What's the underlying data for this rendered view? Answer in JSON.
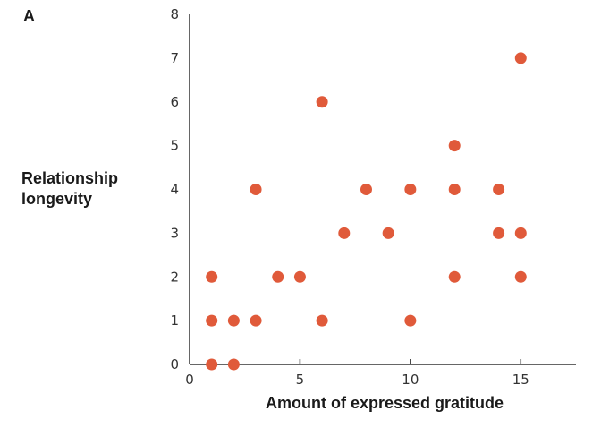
{
  "panel_label": "A",
  "chart_data": {
    "type": "scatter",
    "title": "",
    "xlabel": "Amount of expressed gratitude",
    "ylabel_lines": [
      "Relationship",
      "longevity"
    ],
    "xlim": [
      0,
      17.5
    ],
    "ylim": [
      0,
      8
    ],
    "x_ticks": [
      0,
      5,
      10,
      15
    ],
    "y_ticks": [
      0,
      1,
      2,
      3,
      4,
      5,
      6,
      7,
      8
    ],
    "grid": false,
    "marker_color": "#e05a3a",
    "points": [
      {
        "x": 1,
        "y": 0
      },
      {
        "x": 1,
        "y": 1
      },
      {
        "x": 1,
        "y": 2
      },
      {
        "x": 2,
        "y": 0
      },
      {
        "x": 2,
        "y": 1
      },
      {
        "x": 3,
        "y": 1
      },
      {
        "x": 3,
        "y": 4
      },
      {
        "x": 4,
        "y": 2
      },
      {
        "x": 5,
        "y": 2
      },
      {
        "x": 6,
        "y": 1
      },
      {
        "x": 6,
        "y": 6
      },
      {
        "x": 7,
        "y": 3
      },
      {
        "x": 8,
        "y": 4
      },
      {
        "x": 9,
        "y": 3
      },
      {
        "x": 10,
        "y": 1
      },
      {
        "x": 10,
        "y": 4
      },
      {
        "x": 12,
        "y": 2
      },
      {
        "x": 12,
        "y": 4
      },
      {
        "x": 12,
        "y": 5
      },
      {
        "x": 14,
        "y": 3
      },
      {
        "x": 14,
        "y": 4
      },
      {
        "x": 15,
        "y": 2
      },
      {
        "x": 15,
        "y": 3
      },
      {
        "x": 15,
        "y": 7
      }
    ]
  }
}
